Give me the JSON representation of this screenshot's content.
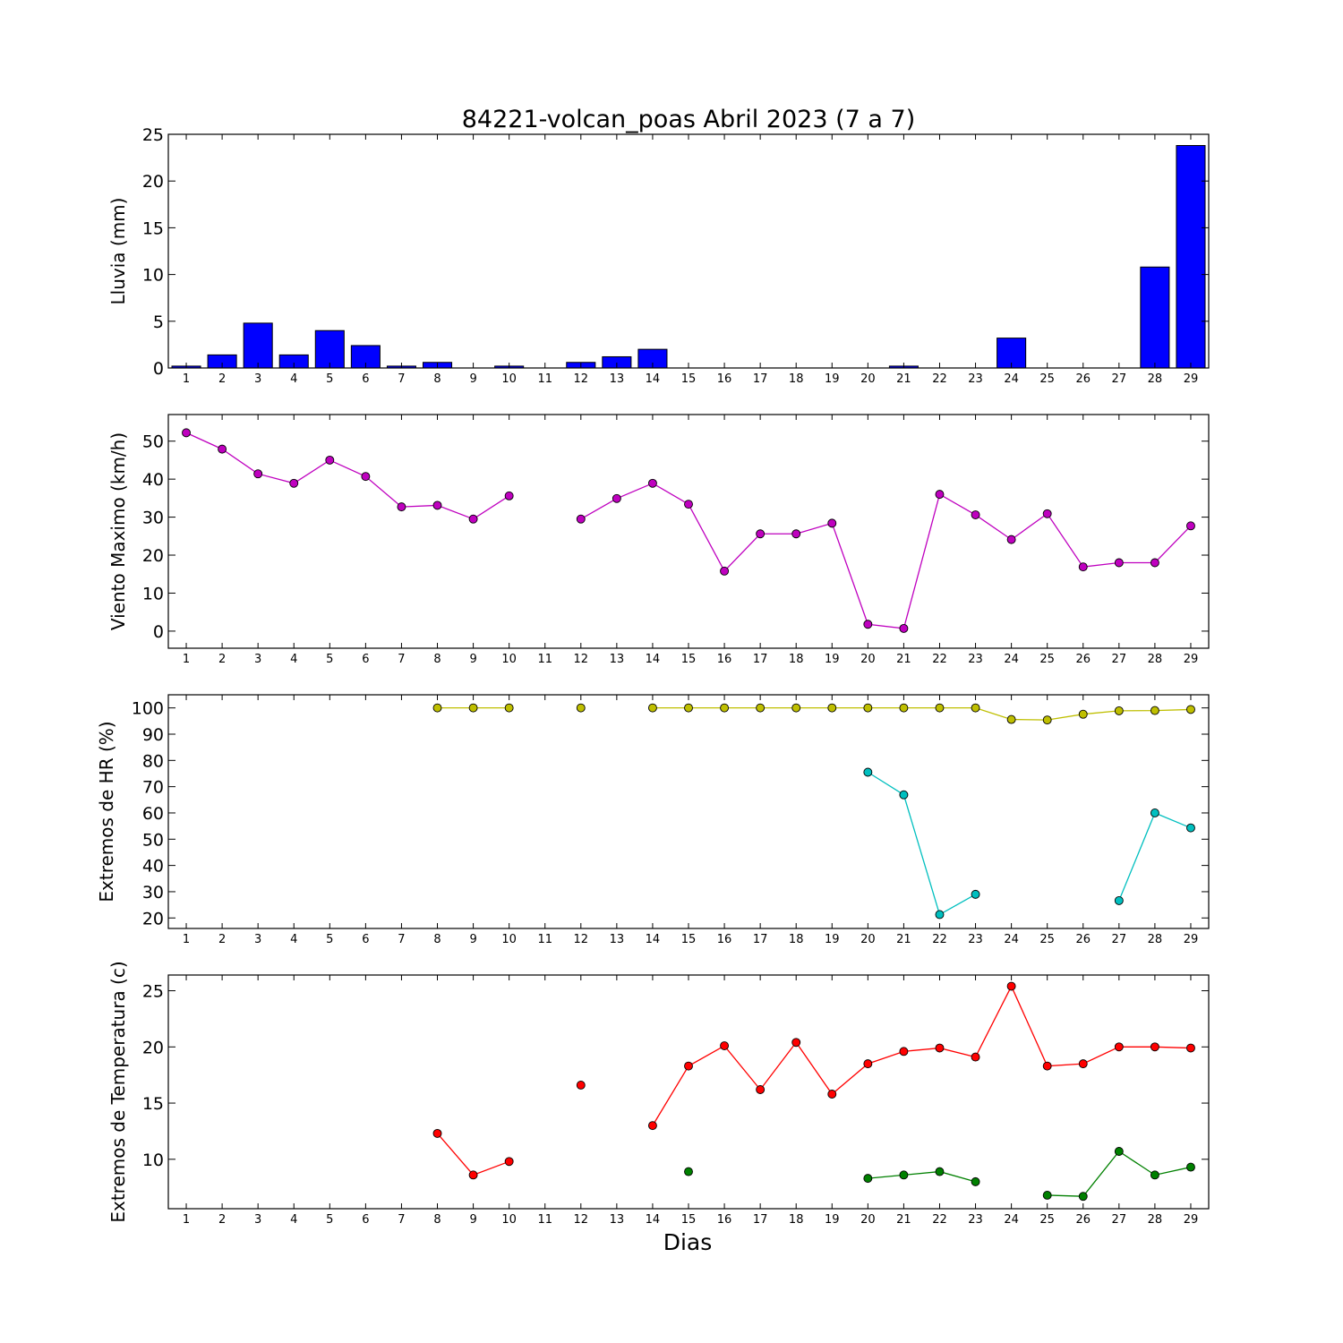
{
  "figure": {
    "title": "84221-volcan_poas Abril 2023  (7 a 7)",
    "xlabel": "Dias"
  },
  "chart_data": [
    {
      "id": "rain",
      "type": "bar",
      "ylabel": "Lluvia (mm)",
      "ylim": [
        0,
        25
      ],
      "yticks": [
        0,
        5,
        10,
        15,
        20,
        25
      ],
      "xlim": [
        0.5,
        29.5
      ],
      "categories": [
        "1",
        "2",
        "3",
        "4",
        "5",
        "6",
        "7",
        "8",
        "9",
        "10",
        "11",
        "12",
        "13",
        "14",
        "15",
        "16",
        "17",
        "18",
        "19",
        "20",
        "21",
        "22",
        "23",
        "24",
        "25",
        "26",
        "27",
        "28",
        "29"
      ],
      "color": "#0000ff",
      "values": [
        0.2,
        1.4,
        4.8,
        1.4,
        4.0,
        2.4,
        0.2,
        0.6,
        0.0,
        0.2,
        0.0,
        0.6,
        1.2,
        2.0,
        0.0,
        0.0,
        0.0,
        0.0,
        0.0,
        0.0,
        0.2,
        0.0,
        0.0,
        3.2,
        0.0,
        0.0,
        0.0,
        10.8,
        23.8
      ]
    },
    {
      "id": "wind",
      "type": "line",
      "ylabel": "Viento Maximo (km/h)",
      "ylim": [
        -4.5,
        57
      ],
      "yticks": [
        0,
        10,
        20,
        30,
        40,
        50
      ],
      "xlim": [
        0.5,
        29.5
      ],
      "x": [
        1,
        2,
        3,
        4,
        5,
        6,
        7,
        8,
        9,
        10,
        11,
        12,
        13,
        14,
        15,
        16,
        17,
        18,
        19,
        20,
        21,
        22,
        23,
        24,
        25,
        26,
        27,
        28,
        29
      ],
      "series": [
        {
          "color": "#bf00bf",
          "values": [
            52.2,
            47.9,
            41.4,
            38.9,
            45.0,
            40.7,
            32.7,
            33.1,
            29.5,
            35.6,
            null,
            29.5,
            34.9,
            38.9,
            33.4,
            15.8,
            25.6,
            25.6,
            28.4,
            1.8,
            0.7,
            36.0,
            30.6,
            24.1,
            30.9,
            16.9,
            18.0,
            18.0,
            27.7
          ]
        }
      ]
    },
    {
      "id": "humidity",
      "type": "line",
      "ylabel": "Extremos de HR (%)",
      "ylim": [
        16,
        105
      ],
      "yticks": [
        20,
        30,
        40,
        50,
        60,
        70,
        80,
        90,
        100
      ],
      "xlim": [
        0.5,
        29.5
      ],
      "x": [
        1,
        2,
        3,
        4,
        5,
        6,
        7,
        8,
        9,
        10,
        11,
        12,
        13,
        14,
        15,
        16,
        17,
        18,
        19,
        20,
        21,
        22,
        23,
        24,
        25,
        26,
        27,
        28,
        29
      ],
      "series": [
        {
          "color": "#bfbf00",
          "values": [
            null,
            null,
            null,
            null,
            null,
            null,
            null,
            100,
            100,
            100,
            null,
            100,
            null,
            100,
            100,
            100,
            100,
            100,
            100,
            100,
            100,
            100,
            100,
            95.6,
            95.4,
            97.6,
            98.9,
            99.0,
            99.4
          ]
        },
        {
          "color": "#00bfbf",
          "values": [
            null,
            null,
            null,
            null,
            null,
            null,
            null,
            null,
            null,
            null,
            null,
            null,
            null,
            null,
            null,
            null,
            null,
            null,
            null,
            75.5,
            66.9,
            21.3,
            29.0,
            null,
            null,
            null,
            26.6,
            60.0,
            54.3
          ]
        }
      ]
    },
    {
      "id": "temperature",
      "type": "line",
      "ylabel": "Extremos de Temperatura (c)",
      "ylim": [
        5.6,
        26.4
      ],
      "yticks": [
        10,
        15,
        20,
        25
      ],
      "xlim": [
        0.5,
        29.5
      ],
      "x": [
        1,
        2,
        3,
        4,
        5,
        6,
        7,
        8,
        9,
        10,
        11,
        12,
        13,
        14,
        15,
        16,
        17,
        18,
        19,
        20,
        21,
        22,
        23,
        24,
        25,
        26,
        27,
        28,
        29
      ],
      "series": [
        {
          "color": "#ff0000",
          "values": [
            null,
            null,
            null,
            null,
            null,
            null,
            null,
            12.3,
            8.6,
            9.8,
            null,
            16.6,
            null,
            13.0,
            18.3,
            20.1,
            16.2,
            20.4,
            15.8,
            18.5,
            19.6,
            19.9,
            19.1,
            25.4,
            18.3,
            18.5,
            20.0,
            20.0,
            19.9
          ]
        },
        {
          "color": "#008000",
          "values": [
            null,
            null,
            null,
            null,
            null,
            null,
            null,
            null,
            null,
            null,
            null,
            null,
            null,
            null,
            8.9,
            null,
            null,
            null,
            null,
            8.3,
            8.6,
            8.9,
            8.0,
            null,
            6.8,
            6.7,
            10.7,
            8.6,
            9.3
          ]
        }
      ]
    }
  ]
}
